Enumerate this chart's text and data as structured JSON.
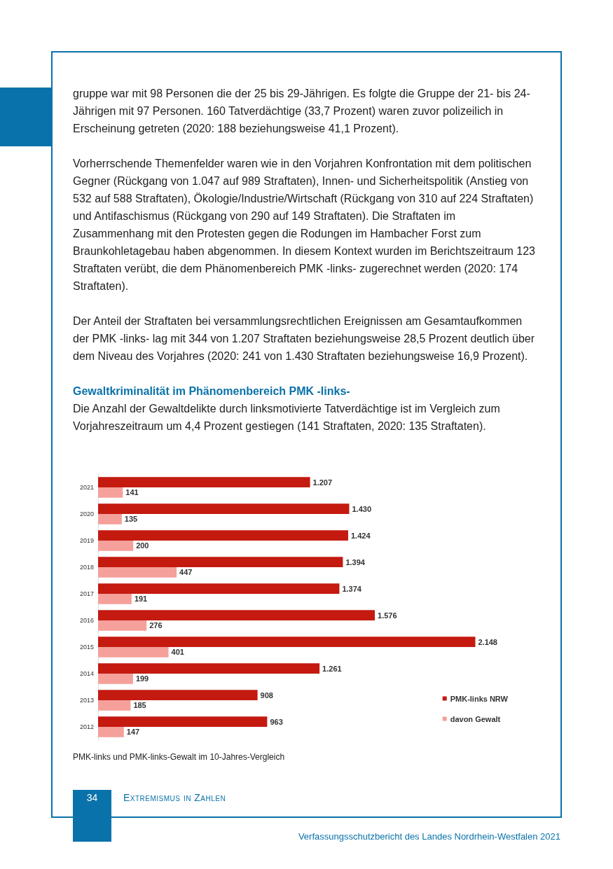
{
  "chart_data": {
    "type": "bar",
    "orientation": "horizontal",
    "title": "Gewaltkriminalität im Phänomenbereich PMK -links-",
    "subtitle": "Die Anzahl der Gewaltdelikte durch linksmotivierte Tatverdächtige ist im Vergleich zum Vorjahreszeitraum um 4,4 Prozent gestiegen (141 Straftaten, 2020: 135 Straftaten).",
    "categories": [
      "2021",
      "2020",
      "2019",
      "2018",
      "2017",
      "2016",
      "2015",
      "2014",
      "2013",
      "2012"
    ],
    "series": [
      {
        "name": "PMK-links NRW",
        "color": "#c41a10",
        "values": [
          1207,
          1430,
          1424,
          1394,
          1374,
          1576,
          2148,
          1261,
          908,
          963
        ],
        "value_labels": [
          "1.207",
          "1.430",
          "1.424",
          "1.394",
          "1.374",
          "1.576",
          "2.148",
          "1.261",
          "908",
          "963"
        ]
      },
      {
        "name": "davon Gewalt",
        "color": "#f5a09a",
        "values": [
          141,
          135,
          200,
          447,
          191,
          276,
          401,
          199,
          185,
          147
        ],
        "value_labels": [
          "141",
          "135",
          "200",
          "447",
          "191",
          "276",
          "401",
          "199",
          "185",
          "147"
        ]
      }
    ],
    "legend": "bottom right",
    "annotations": [
      "gruppe war mit 98 Personen die der 25 bis 29-Jährigen. Es folgte die Gruppe der 21- bis 24-Jährigen mit 97 Personen. 160 Tatverdächtige (33,7 Prozent) waren zuvor polizeilich in Erscheinung getreten (2020: 188 beziehungsweise 41,1 Prozent).",
      "Vorherrschende Themenfelder waren wie in den Vorjahren Konfrontation mit dem politischen Gegner (Rückgang von 1.047 auf 989 Straftaten), Innen- und Sicherheitspolitik (Anstieg von 532 auf 588 Straftaten), Ökologie/Industrie/Wirtschaft (Rückgang von 310 auf 224 Straftaten) und Antifaschismus (Rückgang von 290 auf 149 Straftaten). Die Straftaten im Zusammenhang mit den Protesten gegen die Rodungen im Hambacher Forst zum Braunkohletagebau haben abgenommen. In diesem Kontext wurden im Berichtszeitraum 123 Straftaten verübt, die dem Phänomenbereich PMK -links- zugerechnet werden (2020: 174 Straftaten).",
      "Der Anteil der Straftaten bei versammlungsrechtlichen Ereignissen am Gesamtaufkommen der PMK -links- lag mit 344 von 1.207 Straftaten beziehungsweise 28,5 Prozent deutlich über dem Niveau des Vorjahres (2020: 241 von 1.430 Straftaten beziehungsweise 16,9 Prozent).",
      "PMK-links und PMK-links-Gewalt im 10-Jahres-Vergleich",
      "34",
      "Extremismus in Zahlen",
      "Verfassungsschutzbericht des Landes Nordrhein-Westfalen 2021"
    ]
  }
}
